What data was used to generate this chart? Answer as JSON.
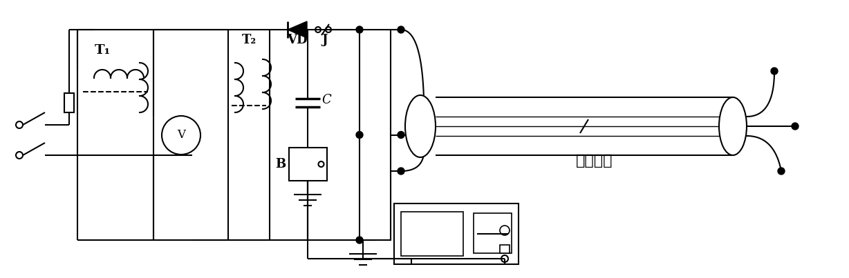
{
  "background_color": "#ffffff",
  "line_color": "#000000",
  "lw": 1.5,
  "fig_width": 12.28,
  "fig_height": 4.03,
  "label_T1": "T₁",
  "label_T2": "T₂",
  "label_VD": "VD",
  "label_J": "J",
  "label_C": "C",
  "label_B": "B",
  "label_cable": "被测电缆",
  "font_size_labels": 11,
  "font_size_cable": 16
}
